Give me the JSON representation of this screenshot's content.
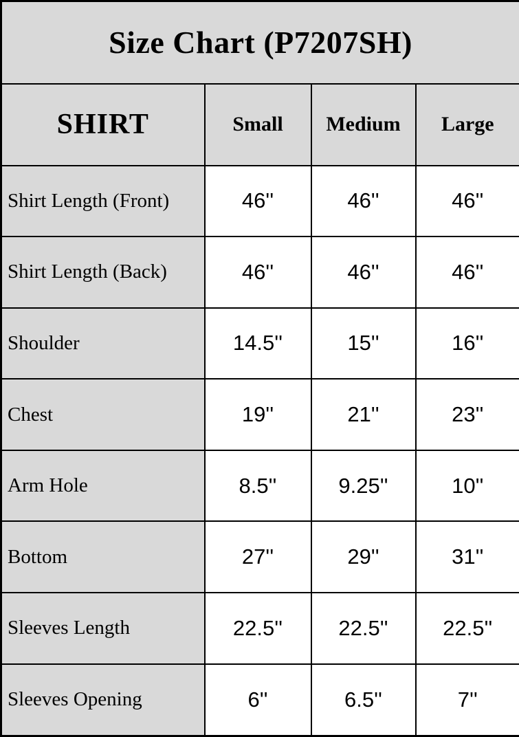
{
  "title": "Size Chart (P7207SH)",
  "colors": {
    "cell_gray": "#d9d9d9",
    "cell_white": "#ffffff",
    "border": "#000000",
    "text": "#000000"
  },
  "table": {
    "header": [
      "SHIRT",
      "Small",
      "Medium",
      "Large"
    ],
    "rows": [
      {
        "label": "Shirt Length (Front)",
        "values": [
          "46''",
          "46''",
          "46''"
        ]
      },
      {
        "label": "Shirt Length (Back)",
        "values": [
          "46''",
          "46''",
          "46''"
        ]
      },
      {
        "label": "Shoulder",
        "values": [
          "14.5''",
          "15''",
          "16''"
        ]
      },
      {
        "label": "Chest",
        "values": [
          "19''",
          "21''",
          "23''"
        ]
      },
      {
        "label": "Arm Hole",
        "values": [
          "8.5''",
          "9.25''",
          "10''"
        ]
      },
      {
        "label": "Bottom",
        "values": [
          "27''",
          "29''",
          "31''"
        ]
      },
      {
        "label": "Sleeves Length",
        "values": [
          "22.5''",
          "22.5''",
          "22.5''"
        ]
      },
      {
        "label": "Sleeves Opening",
        "values": [
          "6''",
          "6.5''",
          "7''"
        ]
      }
    ]
  }
}
